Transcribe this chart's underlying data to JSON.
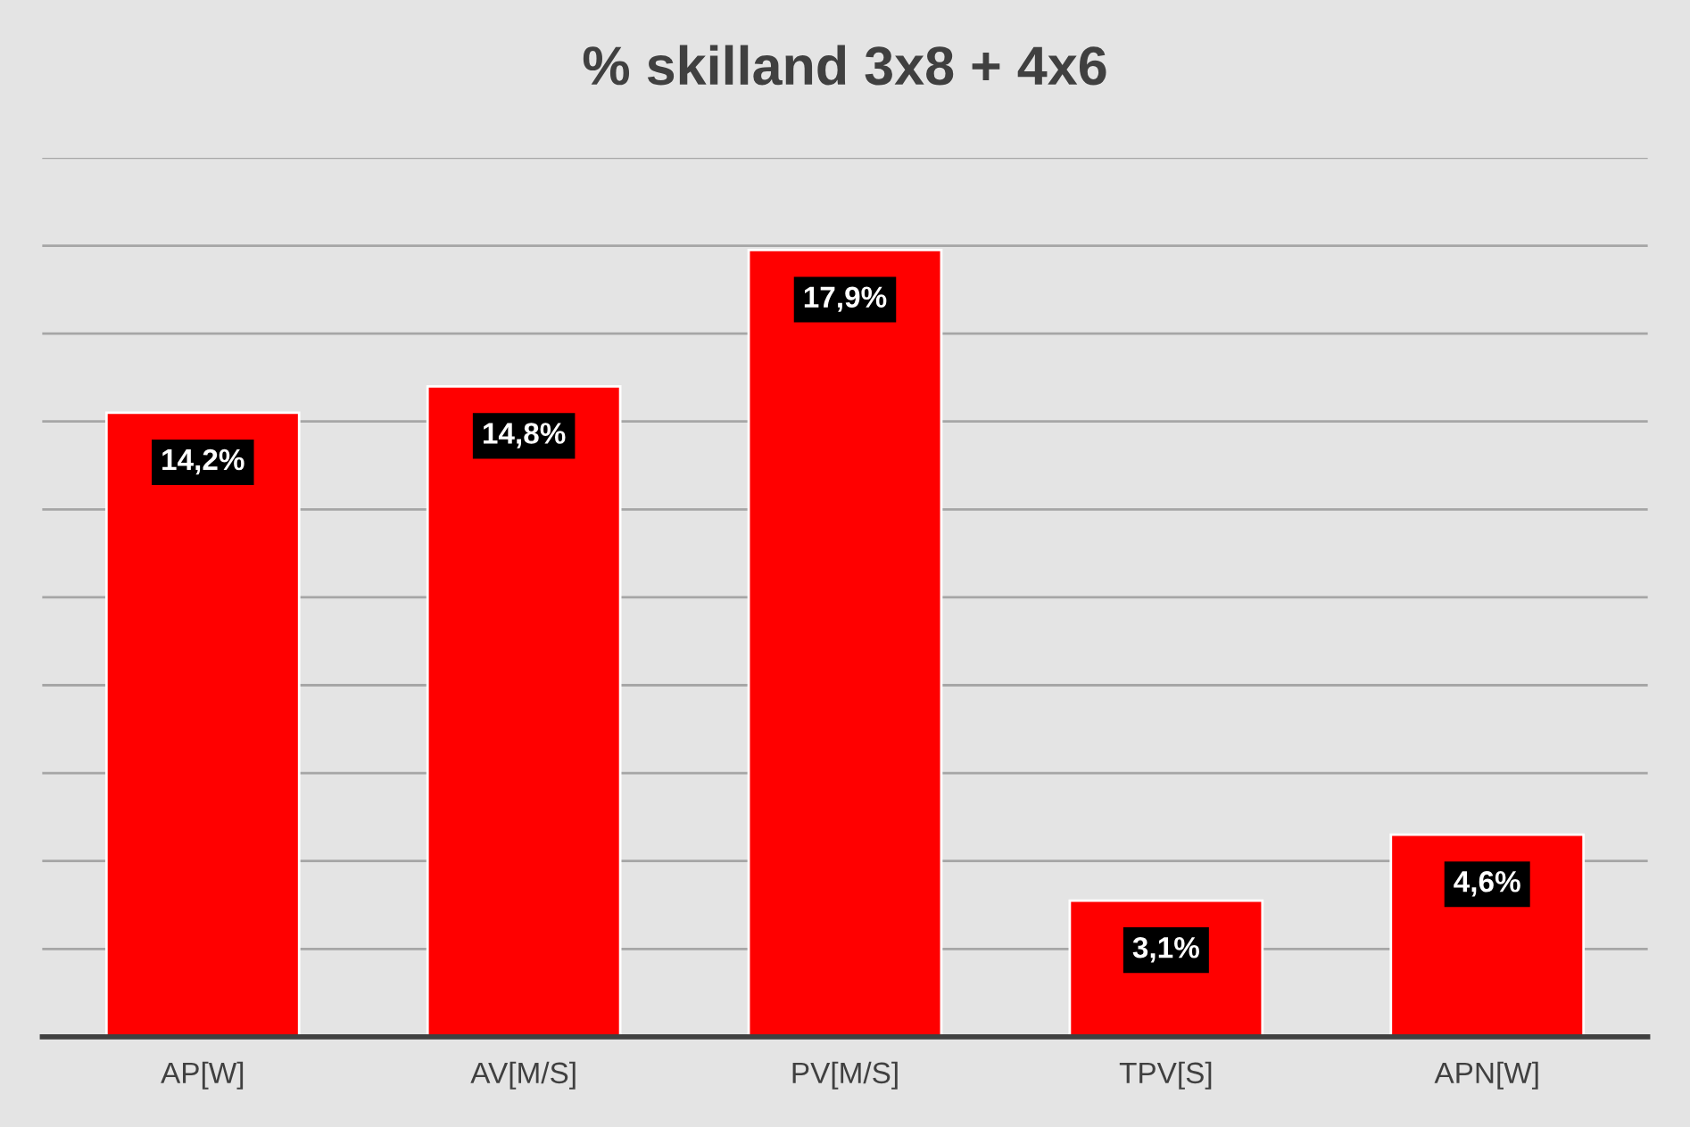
{
  "chart_data": {
    "type": "bar",
    "title": "% skilland 3x8 + 4x6",
    "categories": [
      "AP[W]",
      "AV[M/S]",
      "PV[M/S]",
      "TPV[S]",
      "APN[W]"
    ],
    "values": [
      14.2,
      14.8,
      17.9,
      3.1,
      4.6
    ],
    "value_labels": [
      "14,2%",
      "14,8%",
      "17,9%",
      "3,1%",
      "4,6%"
    ],
    "color": "#ff0000",
    "ylim": [
      0,
      20
    ],
    "yticks": [
      {
        "value": 0,
        "label": null
      },
      {
        "value": 2,
        "label": null
      },
      {
        "value": 4,
        "label": null
      },
      {
        "value": 6,
        "label": null
      },
      {
        "value": 8,
        "label": null
      },
      {
        "value": 10,
        "label": null
      },
      {
        "value": 12,
        "label": null
      },
      {
        "value": 14,
        "label": null
      },
      {
        "value": 16,
        "label": null
      },
      {
        "value": 18,
        "label": null
      },
      {
        "value": 20,
        "label": null
      }
    ],
    "tick_labels": "x",
    "grid": "y"
  }
}
